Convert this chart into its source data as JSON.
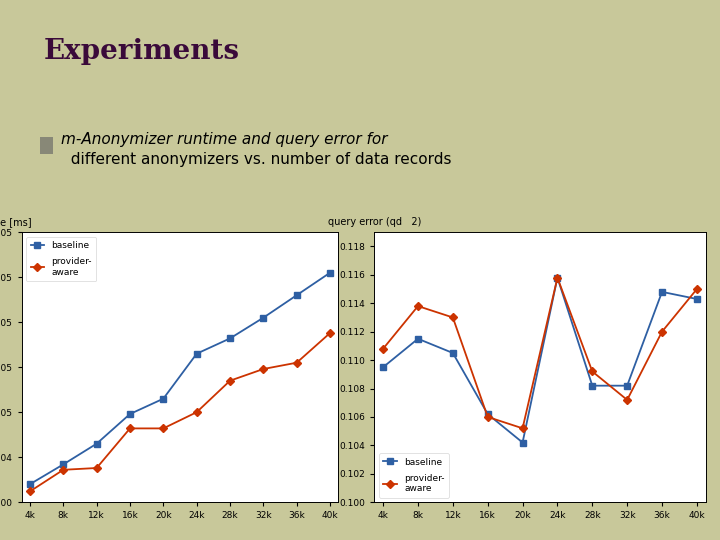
{
  "bg_color": "#c8c89a",
  "title": "Experiments",
  "bullet_text_line1": "m-Anonymizer runtime and query error for",
  "bullet_text_line2": "  different anonymizers vs. number of data records",
  "x_labels": [
    "4k",
    "8k",
    "12k",
    "16k",
    "20k",
    "24k",
    "28k",
    "32k",
    "36k",
    "40k"
  ],
  "x_values": [
    4000,
    8000,
    12000,
    16000,
    20000,
    24000,
    28000,
    32000,
    36000,
    40000
  ],
  "runtime_baseline": [
    20000,
    42000,
    65000,
    98000,
    115000,
    165000,
    182000,
    205000,
    230000,
    255000
  ],
  "runtime_provider": [
    12000,
    36000,
    38000,
    82000,
    82000,
    100000,
    135000,
    148000,
    155000,
    188000
  ],
  "error_baseline": [
    0.1095,
    0.1115,
    0.1105,
    0.1062,
    0.1042,
    0.1158,
    0.1082,
    0.1082,
    0.1148,
    0.1143
  ],
  "error_provider": [
    0.1108,
    0.1138,
    0.113,
    0.106,
    0.1052,
    0.1158,
    0.1092,
    0.1072,
    0.112,
    0.115
  ],
  "baseline_color": "#2e5fa3",
  "provider_color": "#cc3300",
  "chart_bg": "#ffffff",
  "left_ylabel": "time [ms]",
  "right_ylabel": "query error (qd   2)",
  "ylim_left": [
    0,
    300000
  ],
  "ylim_right": [
    0.1,
    0.119
  ],
  "title_color": "#3a0a3a",
  "bullet_color": "#888877"
}
